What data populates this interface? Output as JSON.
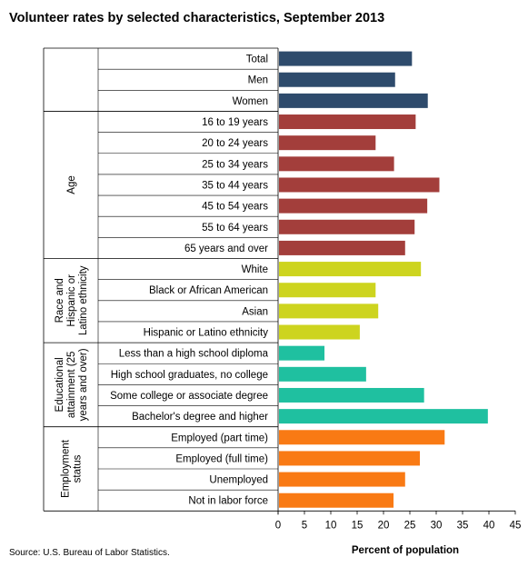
{
  "title": "Volunteer rates by selected characteristics, September 2013",
  "source": "Source: U.S. Bureau of Labor Statistics.",
  "chart_data": {
    "type": "bar",
    "orientation": "horizontal",
    "title": "Volunteer rates by selected characteristics, September 2013",
    "xlabel": "Percent of population",
    "ylabel": "",
    "xlim": [
      0,
      45
    ],
    "xticks": [
      0,
      5,
      10,
      15,
      20,
      25,
      30,
      35,
      40,
      45
    ],
    "grid": false,
    "groups": [
      {
        "name": "",
        "color": "#2e4b6c",
        "categories": [
          "Total",
          "Men",
          "Women"
        ],
        "values": [
          25.4,
          22.2,
          28.4
        ]
      },
      {
        "name": "Age",
        "color": "#a33e3b",
        "categories": [
          "16 to 19 years",
          "20 to 24 years",
          "25 to 34 years",
          "35 to 44 years",
          "45 to 54 years",
          "55 to 64 years",
          "65 years and over"
        ],
        "values": [
          26.1,
          18.5,
          22.0,
          30.6,
          28.3,
          25.9,
          24.1
        ]
      },
      {
        "name": "Race and Hispanic or Latino ethnicity",
        "name_lines": [
          "Race and",
          "Hispanic or",
          "Latino ethnicity"
        ],
        "color": "#cdd41f",
        "categories": [
          "White",
          "Black or African American",
          "Asian",
          "Hispanic or Latino ethnicity"
        ],
        "values": [
          27.1,
          18.5,
          19.0,
          15.5
        ]
      },
      {
        "name": "Educational attainment (25 years and over)",
        "name_lines": [
          "Educational",
          "attainment (25",
          "years and over)"
        ],
        "color": "#1fc0a0",
        "categories": [
          "Less than a high school diploma",
          "High school graduates, no college",
          "Some college or associate degree",
          "Bachelor's degree and higher"
        ],
        "values": [
          8.8,
          16.7,
          27.7,
          39.8
        ]
      },
      {
        "name": "Employment status",
        "name_lines": [
          "Employment",
          "status"
        ],
        "color": "#f97a14",
        "categories": [
          "Employed (part time)",
          "Employed (full time)",
          "Unemployed",
          "Not in labor force"
        ],
        "values": [
          31.6,
          26.9,
          24.1,
          21.9
        ]
      }
    ]
  }
}
